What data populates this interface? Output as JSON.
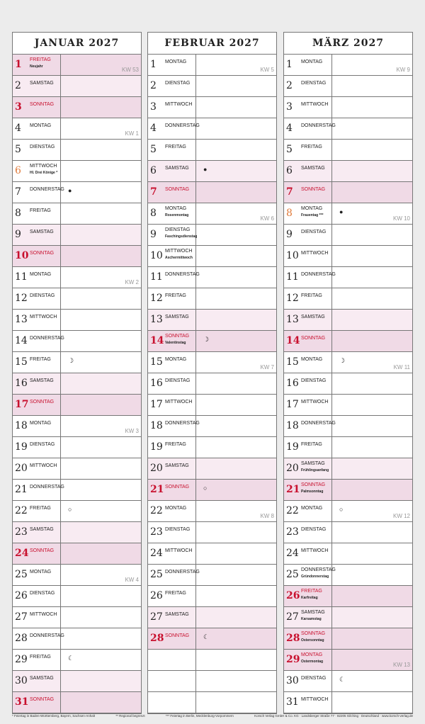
{
  "months": [
    {
      "title": "Januar 2027",
      "days": [
        {
          "d": "1",
          "wd": "Freitag",
          "note": "Neujahr",
          "type": "dark red",
          "kw": "KW 53",
          "moon": ""
        },
        {
          "d": "2",
          "wd": "Samstag",
          "note": "",
          "type": "sat",
          "kw": "",
          "moon": ""
        },
        {
          "d": "3",
          "wd": "Sonntag",
          "note": "",
          "type": "dark red",
          "kw": "",
          "moon": ""
        },
        {
          "d": "4",
          "wd": "Montag",
          "note": "",
          "type": "",
          "kw": "KW 1",
          "moon": ""
        },
        {
          "d": "5",
          "wd": "Dienstag",
          "note": "",
          "type": "",
          "kw": "",
          "moon": ""
        },
        {
          "d": "6",
          "wd": "Mittwoch",
          "note": "Hl. Drei Könige *",
          "type": "orange",
          "kw": "",
          "moon": ""
        },
        {
          "d": "7",
          "wd": "Donnerstag",
          "note": "",
          "type": "",
          "kw": "",
          "moon": "●"
        },
        {
          "d": "8",
          "wd": "Freitag",
          "note": "",
          "type": "",
          "kw": "",
          "moon": ""
        },
        {
          "d": "9",
          "wd": "Samstag",
          "note": "",
          "type": "sat",
          "kw": "",
          "moon": ""
        },
        {
          "d": "10",
          "wd": "Sonntag",
          "note": "",
          "type": "dark red",
          "kw": "",
          "moon": ""
        },
        {
          "d": "11",
          "wd": "Montag",
          "note": "",
          "type": "",
          "kw": "KW 2",
          "moon": ""
        },
        {
          "d": "12",
          "wd": "Dienstag",
          "note": "",
          "type": "",
          "kw": "",
          "moon": ""
        },
        {
          "d": "13",
          "wd": "Mittwoch",
          "note": "",
          "type": "",
          "kw": "",
          "moon": ""
        },
        {
          "d": "14",
          "wd": "Donnerstag",
          "note": "",
          "type": "",
          "kw": "",
          "moon": ""
        },
        {
          "d": "15",
          "wd": "Freitag",
          "note": "",
          "type": "",
          "kw": "",
          "moon": "☽"
        },
        {
          "d": "16",
          "wd": "Samstag",
          "note": "",
          "type": "sat",
          "kw": "",
          "moon": ""
        },
        {
          "d": "17",
          "wd": "Sonntag",
          "note": "",
          "type": "dark red",
          "kw": "",
          "moon": ""
        },
        {
          "d": "18",
          "wd": "Montag",
          "note": "",
          "type": "",
          "kw": "KW 3",
          "moon": ""
        },
        {
          "d": "19",
          "wd": "Dienstag",
          "note": "",
          "type": "",
          "kw": "",
          "moon": ""
        },
        {
          "d": "20",
          "wd": "Mittwoch",
          "note": "",
          "type": "",
          "kw": "",
          "moon": ""
        },
        {
          "d": "21",
          "wd": "Donnerstag",
          "note": "",
          "type": "",
          "kw": "",
          "moon": ""
        },
        {
          "d": "22",
          "wd": "Freitag",
          "note": "",
          "type": "",
          "kw": "",
          "moon": "○"
        },
        {
          "d": "23",
          "wd": "Samstag",
          "note": "",
          "type": "sat",
          "kw": "",
          "moon": ""
        },
        {
          "d": "24",
          "wd": "Sonntag",
          "note": "",
          "type": "dark red",
          "kw": "",
          "moon": ""
        },
        {
          "d": "25",
          "wd": "Montag",
          "note": "",
          "type": "",
          "kw": "KW 4",
          "moon": ""
        },
        {
          "d": "26",
          "wd": "Dienstag",
          "note": "",
          "type": "",
          "kw": "",
          "moon": ""
        },
        {
          "d": "27",
          "wd": "Mittwoch",
          "note": "",
          "type": "",
          "kw": "",
          "moon": ""
        },
        {
          "d": "28",
          "wd": "Donnerstag",
          "note": "",
          "type": "",
          "kw": "",
          "moon": ""
        },
        {
          "d": "29",
          "wd": "Freitag",
          "note": "",
          "type": "",
          "kw": "",
          "moon": "☾"
        },
        {
          "d": "30",
          "wd": "Samstag",
          "note": "",
          "type": "sat",
          "kw": "",
          "moon": ""
        },
        {
          "d": "31",
          "wd": "Sonntag",
          "note": "",
          "type": "dark red",
          "kw": "",
          "moon": ""
        }
      ]
    },
    {
      "title": "Februar 2027",
      "days": [
        {
          "d": "1",
          "wd": "Montag",
          "note": "",
          "type": "",
          "kw": "KW 5",
          "moon": ""
        },
        {
          "d": "2",
          "wd": "Dienstag",
          "note": "",
          "type": "",
          "kw": "",
          "moon": ""
        },
        {
          "d": "3",
          "wd": "Mittwoch",
          "note": "",
          "type": "",
          "kw": "",
          "moon": ""
        },
        {
          "d": "4",
          "wd": "Donnerstag",
          "note": "",
          "type": "",
          "kw": "",
          "moon": ""
        },
        {
          "d": "5",
          "wd": "Freitag",
          "note": "",
          "type": "",
          "kw": "",
          "moon": ""
        },
        {
          "d": "6",
          "wd": "Samstag",
          "note": "",
          "type": "sat",
          "kw": "",
          "moon": "●"
        },
        {
          "d": "7",
          "wd": "Sonntag",
          "note": "",
          "type": "dark red",
          "kw": "",
          "moon": ""
        },
        {
          "d": "8",
          "wd": "Montag",
          "note": "Rosenmontag",
          "type": "",
          "kw": "KW 6",
          "moon": ""
        },
        {
          "d": "9",
          "wd": "Dienstag",
          "note": "Faschingsdienstag",
          "type": "",
          "kw": "",
          "moon": ""
        },
        {
          "d": "10",
          "wd": "Mittwoch",
          "note": "Aschermittwoch",
          "type": "",
          "kw": "",
          "moon": ""
        },
        {
          "d": "11",
          "wd": "Donnerstag",
          "note": "",
          "type": "",
          "kw": "",
          "moon": ""
        },
        {
          "d": "12",
          "wd": "Freitag",
          "note": "",
          "type": "",
          "kw": "",
          "moon": ""
        },
        {
          "d": "13",
          "wd": "Samstag",
          "note": "",
          "type": "sat",
          "kw": "",
          "moon": ""
        },
        {
          "d": "14",
          "wd": "Sonntag",
          "note": "Valentinstag",
          "type": "dark red",
          "kw": "",
          "moon": "☽"
        },
        {
          "d": "15",
          "wd": "Montag",
          "note": "",
          "type": "",
          "kw": "KW 7",
          "moon": ""
        },
        {
          "d": "16",
          "wd": "Dienstag",
          "note": "",
          "type": "",
          "kw": "",
          "moon": ""
        },
        {
          "d": "17",
          "wd": "Mittwoch",
          "note": "",
          "type": "",
          "kw": "",
          "moon": ""
        },
        {
          "d": "18",
          "wd": "Donnerstag",
          "note": "",
          "type": "",
          "kw": "",
          "moon": ""
        },
        {
          "d": "19",
          "wd": "Freitag",
          "note": "",
          "type": "",
          "kw": "",
          "moon": ""
        },
        {
          "d": "20",
          "wd": "Samstag",
          "note": "",
          "type": "sat",
          "kw": "",
          "moon": ""
        },
        {
          "d": "21",
          "wd": "Sonntag",
          "note": "",
          "type": "dark red",
          "kw": "",
          "moon": "○"
        },
        {
          "d": "22",
          "wd": "Montag",
          "note": "",
          "type": "",
          "kw": "KW 8",
          "moon": ""
        },
        {
          "d": "23",
          "wd": "Dienstag",
          "note": "",
          "type": "",
          "kw": "",
          "moon": ""
        },
        {
          "d": "24",
          "wd": "Mittwoch",
          "note": "",
          "type": "",
          "kw": "",
          "moon": ""
        },
        {
          "d": "25",
          "wd": "Donnerstag",
          "note": "",
          "type": "",
          "kw": "",
          "moon": ""
        },
        {
          "d": "26",
          "wd": "Freitag",
          "note": "",
          "type": "",
          "kw": "",
          "moon": ""
        },
        {
          "d": "27",
          "wd": "Samstag",
          "note": "",
          "type": "sat",
          "kw": "",
          "moon": ""
        },
        {
          "d": "28",
          "wd": "Sonntag",
          "note": "",
          "type": "dark red",
          "kw": "",
          "moon": "☾"
        },
        {
          "d": "",
          "wd": "",
          "note": "",
          "type": "",
          "kw": "",
          "moon": ""
        },
        {
          "d": "",
          "wd": "",
          "note": "",
          "type": "",
          "kw": "",
          "moon": ""
        },
        {
          "d": "",
          "wd": "",
          "note": "",
          "type": "",
          "kw": "",
          "moon": ""
        }
      ]
    },
    {
      "title": "März 2027",
      "days": [
        {
          "d": "1",
          "wd": "Montag",
          "note": "",
          "type": "",
          "kw": "KW 9",
          "moon": ""
        },
        {
          "d": "2",
          "wd": "Dienstag",
          "note": "",
          "type": "",
          "kw": "",
          "moon": ""
        },
        {
          "d": "3",
          "wd": "Mittwoch",
          "note": "",
          "type": "",
          "kw": "",
          "moon": ""
        },
        {
          "d": "4",
          "wd": "Donnerstag",
          "note": "",
          "type": "",
          "kw": "",
          "moon": ""
        },
        {
          "d": "5",
          "wd": "Freitag",
          "note": "",
          "type": "",
          "kw": "",
          "moon": ""
        },
        {
          "d": "6",
          "wd": "Samstag",
          "note": "",
          "type": "sat",
          "kw": "",
          "moon": ""
        },
        {
          "d": "7",
          "wd": "Sonntag",
          "note": "",
          "type": "dark red",
          "kw": "",
          "moon": ""
        },
        {
          "d": "8",
          "wd": "Montag",
          "note": "Frauentag ***",
          "type": "orange",
          "kw": "KW 10",
          "moon": "●"
        },
        {
          "d": "9",
          "wd": "Dienstag",
          "note": "",
          "type": "",
          "kw": "",
          "moon": ""
        },
        {
          "d": "10",
          "wd": "Mittwoch",
          "note": "",
          "type": "",
          "kw": "",
          "moon": ""
        },
        {
          "d": "11",
          "wd": "Donnerstag",
          "note": "",
          "type": "",
          "kw": "",
          "moon": ""
        },
        {
          "d": "12",
          "wd": "Freitag",
          "note": "",
          "type": "",
          "kw": "",
          "moon": ""
        },
        {
          "d": "13",
          "wd": "Samstag",
          "note": "",
          "type": "sat",
          "kw": "",
          "moon": ""
        },
        {
          "d": "14",
          "wd": "Sonntag",
          "note": "",
          "type": "dark red",
          "kw": "",
          "moon": ""
        },
        {
          "d": "15",
          "wd": "Montag",
          "note": "",
          "type": "",
          "kw": "KW 11",
          "moon": "☽"
        },
        {
          "d": "16",
          "wd": "Dienstag",
          "note": "",
          "type": "",
          "kw": "",
          "moon": ""
        },
        {
          "d": "17",
          "wd": "Mittwoch",
          "note": "",
          "type": "",
          "kw": "",
          "moon": ""
        },
        {
          "d": "18",
          "wd": "Donnerstag",
          "note": "",
          "type": "",
          "kw": "",
          "moon": ""
        },
        {
          "d": "19",
          "wd": "Freitag",
          "note": "",
          "type": "",
          "kw": "",
          "moon": ""
        },
        {
          "d": "20",
          "wd": "Samstag",
          "note": "Frühlingsanfang",
          "type": "sat",
          "kw": "",
          "moon": ""
        },
        {
          "d": "21",
          "wd": "Sonntag",
          "note": "Palmsonntag",
          "type": "dark red",
          "kw": "",
          "moon": ""
        },
        {
          "d": "22",
          "wd": "Montag",
          "note": "",
          "type": "",
          "kw": "KW 12",
          "moon": "○"
        },
        {
          "d": "23",
          "wd": "Dienstag",
          "note": "",
          "type": "",
          "kw": "",
          "moon": ""
        },
        {
          "d": "24",
          "wd": "Mittwoch",
          "note": "",
          "type": "",
          "kw": "",
          "moon": ""
        },
        {
          "d": "25",
          "wd": "Donnerstag",
          "note": "Gründonnerstag",
          "type": "",
          "kw": "",
          "moon": ""
        },
        {
          "d": "26",
          "wd": "Freitag",
          "note": "Karfreitag",
          "type": "dark red",
          "kw": "",
          "moon": ""
        },
        {
          "d": "27",
          "wd": "Samstag",
          "note": "Karsamstag",
          "type": "sat",
          "kw": "",
          "moon": ""
        },
        {
          "d": "28",
          "wd": "Sonntag",
          "note": "Ostersonntag",
          "type": "dark red",
          "kw": "",
          "moon": ""
        },
        {
          "d": "29",
          "wd": "Montag",
          "note": "Ostermontag",
          "type": "dark red",
          "kw": "KW 13",
          "moon": ""
        },
        {
          "d": "30",
          "wd": "Dienstag",
          "note": "",
          "type": "",
          "kw": "",
          "moon": "☾"
        },
        {
          "d": "31",
          "wd": "Mittwoch",
          "note": "",
          "type": "",
          "kw": "",
          "moon": ""
        }
      ]
    }
  ],
  "footer": {
    "note1": "* Feiertag in Baden-Württemberg, Bayern, Sachsen-Anhalt",
    "note2": "** Regional begrenzt",
    "note3": "*** Feiertag in Berlin, Mecklenburg-Vorpommern",
    "publisher": "Korsch Verlag GmbH & Co. KG · Landsberger Straße 77 · 82205 Gilching · Deutschland · www.korsch-verlag.de"
  },
  "colors": {
    "holiday_red": "#c8102e",
    "regional_orange": "#e07a3a",
    "sunday_bg": "#f0dae6",
    "saturday_bg": "#f8ebf2"
  }
}
